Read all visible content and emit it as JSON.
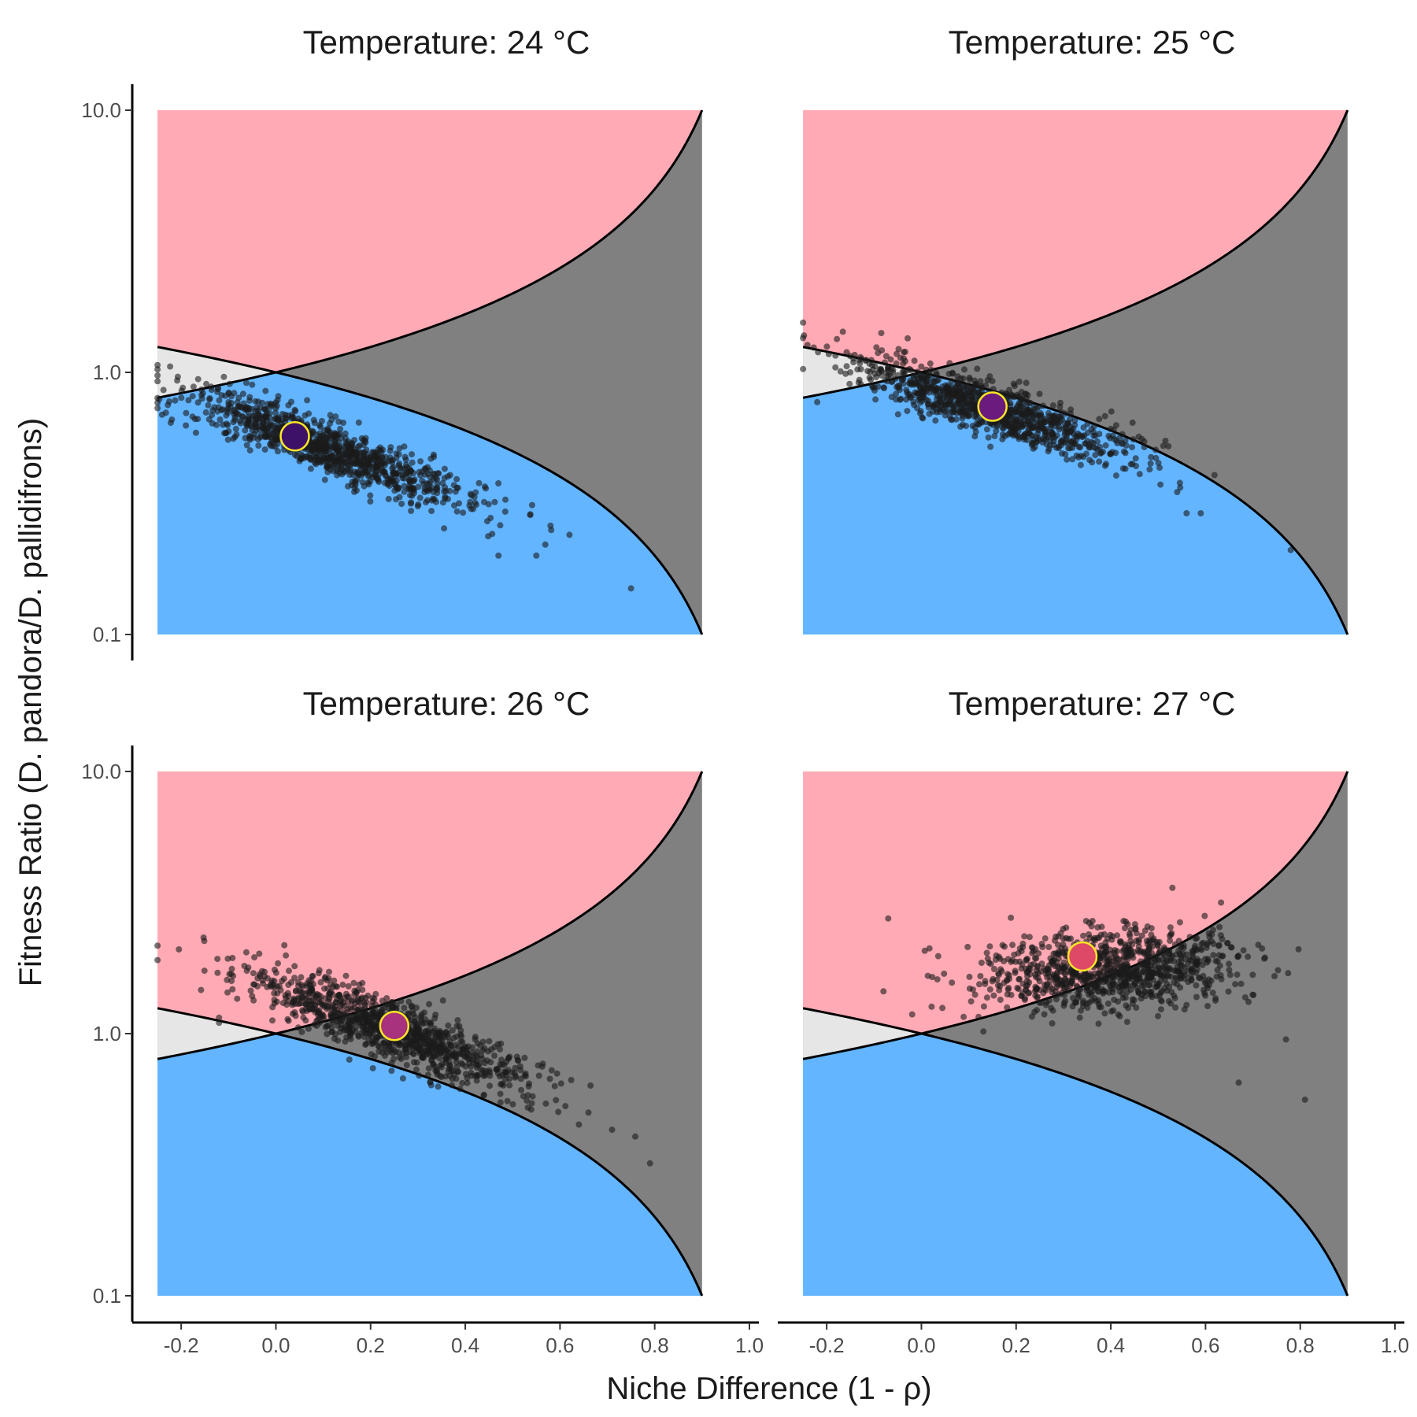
{
  "chart_data": {
    "type": "scatter",
    "xlabel": "Niche Difference (1 - ρ)",
    "ylabel": "Fitness Ratio (D. pandora/D. pallidifrons)",
    "xlim": [
      -0.3,
      1.02
    ],
    "ylim": [
      0.1,
      10.0
    ],
    "y_scale": "log",
    "x_ticks": [
      "-0.2",
      "0.0",
      "0.2",
      "0.4",
      "0.6",
      "0.8",
      "1.0"
    ],
    "x_tick_values": [
      -0.2,
      0.0,
      0.2,
      0.4,
      0.6,
      0.8,
      1.0
    ],
    "y_ticks": [
      "0.1",
      "1.0",
      "10.0"
    ],
    "y_tick_values": [
      0.1,
      1.0,
      10.0
    ],
    "region_x_range": [
      -0.25,
      0.9
    ],
    "boundaries": {
      "upper": "1/(1 - ND)",
      "lower": "1 - ND"
    },
    "region_colors": {
      "above_both": "#FFAAB5",
      "below_both": "#63B5FF",
      "between_positive_nd": "#808080",
      "between_negative_nd": "#E6E6E6",
      "boundary_line": "#000000",
      "points": "#1a1a1a",
      "mean_outline": "#FDE725"
    },
    "grid": false,
    "legend": "none",
    "panels": [
      {
        "title": "Temperature: 24 °C",
        "mean": {
          "nd": 0.04,
          "fr": 0.57,
          "color": "#3E1169"
        },
        "cloud": {
          "nd_center": 0.1,
          "nd_sd": 0.15,
          "fr_at_center": 0.52,
          "fr_slope_log": -0.65,
          "fr_sd_log": 0.05,
          "n": 1000
        },
        "outliers": [
          [
            0.75,
            0.15
          ],
          [
            0.47,
            0.2
          ],
          [
            0.55,
            0.2
          ],
          [
            0.62,
            0.24
          ],
          [
            0.58,
            0.26
          ]
        ]
      },
      {
        "title": "Temperature: 25 °C",
        "mean": {
          "nd": 0.15,
          "fr": 0.74,
          "color": "#6A1C7E"
        },
        "cloud": {
          "nd_center": 0.15,
          "nd_sd": 0.15,
          "fr_at_center": 0.72,
          "fr_slope_log": -0.55,
          "fr_sd_log": 0.05,
          "n": 1000
        },
        "outliers": [
          [
            0.78,
            0.21
          ],
          [
            0.56,
            0.29
          ],
          [
            0.59,
            0.29
          ],
          [
            -0.22,
            0.77
          ],
          [
            -0.06,
            1.02
          ]
        ]
      },
      {
        "title": "Temperature: 26 °C",
        "mean": {
          "nd": 0.25,
          "fr": 1.07,
          "color": "#A8327D"
        },
        "cloud": {
          "nd_center": 0.25,
          "nd_sd": 0.15,
          "fr_at_center": 1.02,
          "fr_slope_log": -0.65,
          "fr_sd_log": 0.055,
          "n": 1000
        },
        "outliers": [
          [
            0.79,
            0.32
          ],
          [
            0.71,
            0.43
          ],
          [
            0.64,
            0.45
          ],
          [
            0.66,
            0.5
          ],
          [
            -0.12,
            1.15
          ],
          [
            -0.12,
            1.1
          ]
        ]
      },
      {
        "title": "Temperature: 27 °C",
        "mean": {
          "nd": 0.34,
          "fr": 1.97,
          "color": "#DE4968"
        },
        "cloud": {
          "nd_center": 0.4,
          "nd_sd": 0.14,
          "fr_at_center": 1.75,
          "fr_slope_log": 0.1,
          "fr_sd_log": 0.075,
          "n": 1000
        },
        "outliers": [
          [
            0.81,
            0.56
          ],
          [
            0.77,
            0.95
          ],
          [
            0.67,
            0.65
          ],
          [
            -0.08,
            1.45
          ],
          [
            -0.07,
            2.75
          ],
          [
            0.53,
            3.6
          ]
        ]
      }
    ]
  }
}
